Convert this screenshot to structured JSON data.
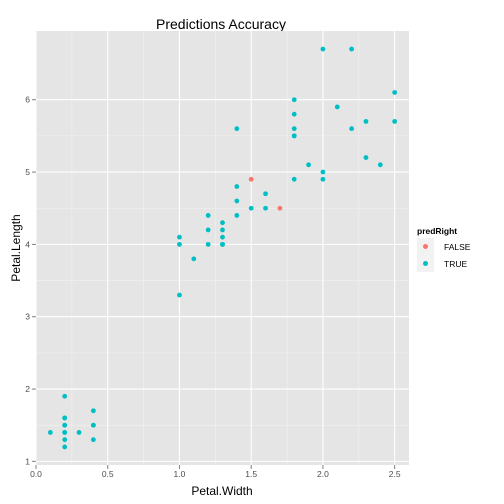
{
  "chart_data": {
    "type": "scatter",
    "title": "Predictions Accuracy",
    "xlabel": "Petal.Width",
    "ylabel": "Petal.Length",
    "xlim": [
      0.0,
      2.6
    ],
    "ylim": [
      0.95,
      6.95
    ],
    "xticks": [
      0.0,
      0.5,
      1.0,
      1.5,
      2.0,
      2.5
    ],
    "xtick_labels": [
      "0.0",
      "0.5",
      "1.0",
      "1.5",
      "2.0",
      "2.5"
    ],
    "yticks": [
      1,
      2,
      3,
      4,
      5,
      6
    ],
    "ytick_labels": [
      "1",
      "2",
      "3",
      "4",
      "5",
      "6"
    ],
    "grid": true,
    "legend": {
      "title": "predRight",
      "position": "right",
      "entries": [
        {
          "label": "FALSE",
          "color": "#f8766d"
        },
        {
          "label": "TRUE",
          "color": "#00bfc4"
        }
      ]
    },
    "series": [
      {
        "name": "FALSE",
        "color": "#f8766d",
        "points": [
          [
            1.5,
            4.9
          ],
          [
            1.7,
            4.5
          ]
        ]
      },
      {
        "name": "TRUE",
        "color": "#00bfc4",
        "points": [
          [
            0.1,
            1.4
          ],
          [
            0.2,
            1.9
          ],
          [
            0.2,
            1.6
          ],
          [
            0.2,
            1.6
          ],
          [
            0.2,
            1.5
          ],
          [
            0.2,
            1.5
          ],
          [
            0.2,
            1.4
          ],
          [
            0.2,
            1.4
          ],
          [
            0.2,
            1.3
          ],
          [
            0.2,
            1.2
          ],
          [
            0.3,
            1.4
          ],
          [
            0.4,
            1.7
          ],
          [
            0.4,
            1.5
          ],
          [
            0.4,
            1.5
          ],
          [
            0.4,
            1.3
          ],
          [
            1.0,
            4.1
          ],
          [
            1.0,
            4.0
          ],
          [
            1.0,
            3.3
          ],
          [
            1.1,
            3.8
          ],
          [
            1.2,
            4.4
          ],
          [
            1.2,
            4.2
          ],
          [
            1.2,
            4.0
          ],
          [
            1.3,
            4.3
          ],
          [
            1.3,
            4.2
          ],
          [
            1.3,
            4.1
          ],
          [
            1.3,
            4.0
          ],
          [
            1.3,
            4.0
          ],
          [
            1.4,
            5.6
          ],
          [
            1.4,
            4.8
          ],
          [
            1.4,
            4.6
          ],
          [
            1.4,
            4.4
          ],
          [
            1.5,
            4.5
          ],
          [
            1.6,
            4.7
          ],
          [
            1.6,
            4.5
          ],
          [
            1.8,
            6.0
          ],
          [
            1.8,
            5.8
          ],
          [
            1.8,
            5.6
          ],
          [
            1.8,
            5.5
          ],
          [
            1.8,
            5.5
          ],
          [
            1.8,
            4.9
          ],
          [
            1.9,
            5.1
          ],
          [
            2.0,
            6.7
          ],
          [
            2.0,
            5.0
          ],
          [
            2.0,
            4.9
          ],
          [
            2.1,
            5.9
          ],
          [
            2.2,
            6.7
          ],
          [
            2.2,
            5.6
          ],
          [
            2.3,
            5.7
          ],
          [
            2.3,
            5.2
          ],
          [
            2.4,
            5.1
          ],
          [
            2.5,
            6.1
          ],
          [
            2.5,
            5.7
          ]
        ]
      }
    ]
  }
}
